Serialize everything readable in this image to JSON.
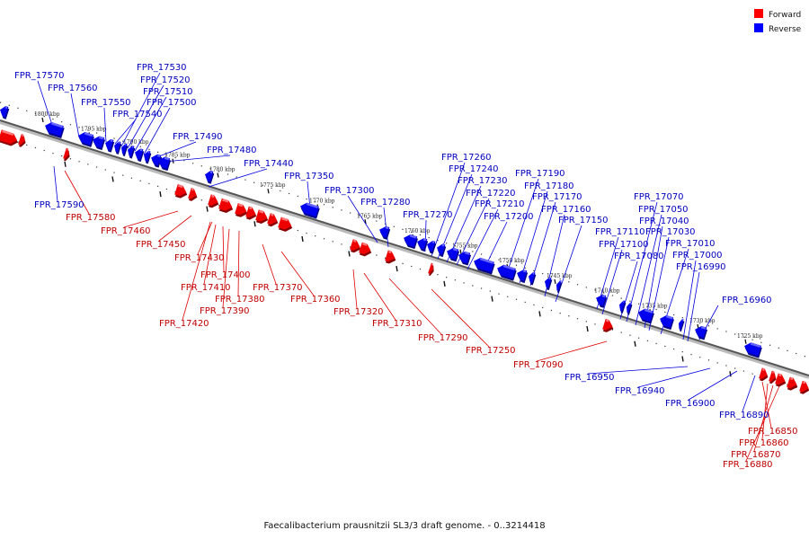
{
  "caption": "Faecalibacterium prausnitzii SL3/3 draft genome. - 0..3214418",
  "legend": {
    "forward": {
      "label": "Forward",
      "color": "#ff0000"
    },
    "reverse": {
      "label": "Reverse",
      "color": "#0000ff"
    }
  },
  "kbp_ticks": [
    "1800 kbp",
    "1795 kbp",
    "1790 kbp",
    "1785 kbp",
    "1780 kbp",
    "1775 kbp",
    "1770 kbp",
    "1765 kbp",
    "1760 kbp",
    "1755 kbp",
    "1750 kbp",
    "1745 kbp",
    "1740 kbp",
    "1735 kbp",
    "1730 kbp",
    "1725 kbp"
  ],
  "reverse_genes": [
    "FPR_17570",
    "FPR_17560",
    "FPR_17550",
    "FPR_17540",
    "FPR_17530",
    "FPR_17520",
    "FPR_17510",
    "FPR_17500",
    "FPR_17490",
    "FPR_17480",
    "FPR_17440",
    "FPR_17350",
    "FPR_17300",
    "FPR_17280",
    "FPR_17270",
    "FPR_17260",
    "FPR_17240",
    "FPR_17230",
    "FPR_17220",
    "FPR_17210",
    "FPR_17200",
    "FPR_17190",
    "FPR_17180",
    "FPR_17170",
    "FPR_17160",
    "FPR_17150",
    "FPR_17110",
    "FPR_17100",
    "FPR_17080",
    "FPR_17070",
    "FPR_17050",
    "FPR_17040",
    "FPR_17030",
    "FPR_17010",
    "FPR_17000",
    "FPR_16990",
    "FPR_16960",
    "FPR_17590",
    "FPR_16950",
    "FPR_16940",
    "FPR_16900",
    "FPR_16890"
  ],
  "forward_genes": [
    "FPR_17580",
    "FPR_17460",
    "FPR_17450",
    "FPR_17430",
    "FPR_17400",
    "FPR_17410",
    "FPR_17380",
    "FPR_17390",
    "FPR_17420",
    "FPR_17370",
    "FPR_17360",
    "FPR_17320",
    "FPR_17310",
    "FPR_17290",
    "FPR_17250",
    "FPR_17090",
    "FPR_16850",
    "FPR_16860",
    "FPR_16870",
    "FPR_16880"
  ]
}
